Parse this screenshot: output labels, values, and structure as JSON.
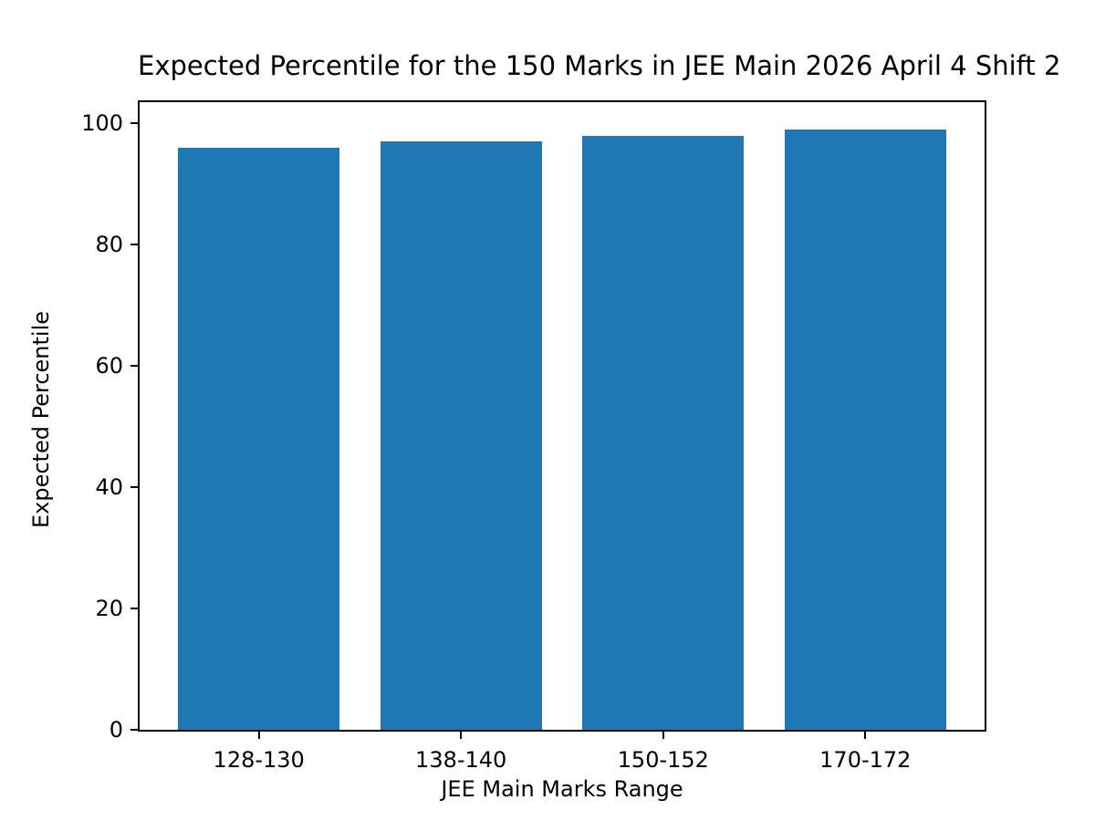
{
  "chart_data": {
    "type": "bar",
    "title": "Expected Percentile for the 150 Marks in JEE Main 2026 April 4 Shift 2",
    "xlabel": "JEE Main Marks Range",
    "ylabel": "Expected Percentile",
    "categories": [
      "128-130",
      "138-140",
      "150-152",
      "170-172"
    ],
    "values": [
      96,
      97,
      98,
      99
    ],
    "yticks": [
      0,
      20,
      40,
      60,
      80,
      100
    ],
    "ylim": [
      0,
      103.5
    ],
    "bar_width_fraction": 0.8,
    "bar_color": "#1f77b4",
    "axis_color": "#000000",
    "background_color": "#ffffff",
    "grid": false,
    "legend": "none"
  }
}
